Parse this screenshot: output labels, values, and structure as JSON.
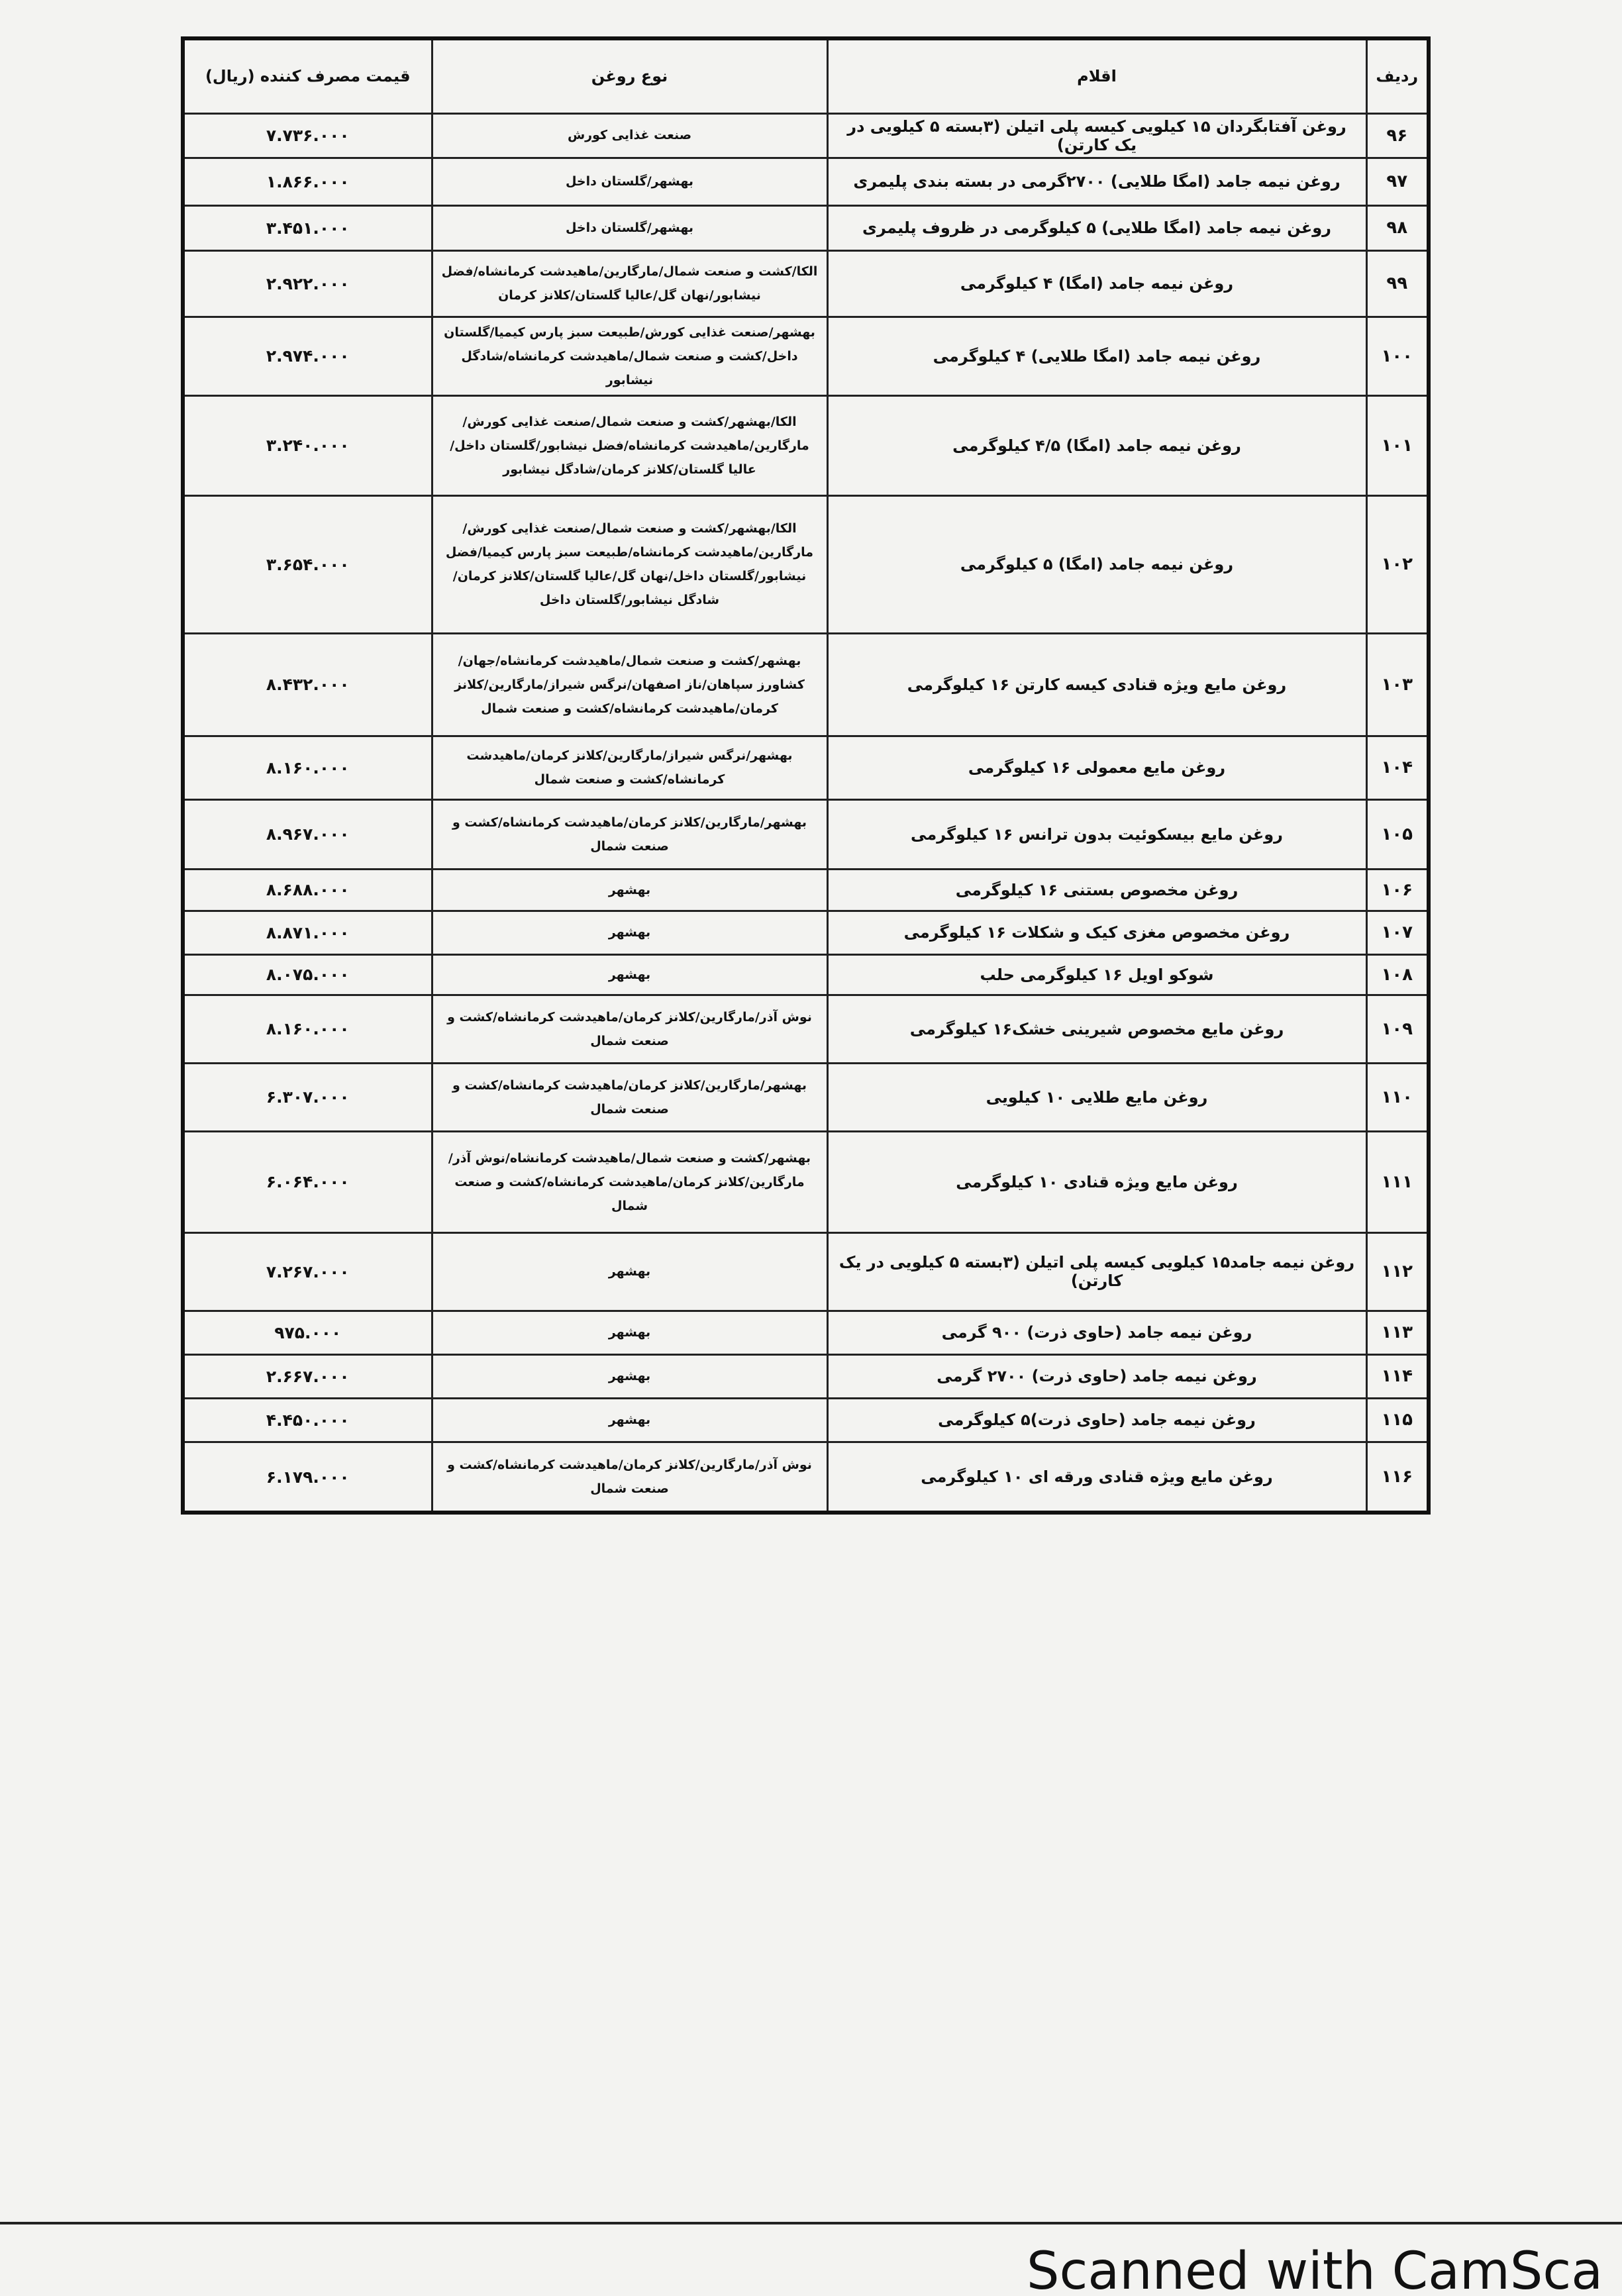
{
  "table": {
    "header": [
      "ردیف",
      "اقلام",
      "نوع روغن",
      "قیمت مصرف کننده (ریال)"
    ],
    "rows": [
      [
        "۹۶",
        "روغن آفتابگردان ۱۵ کیلویی کیسه پلی اتیلن (۳بسته ۵ کیلویی در یک کارتن)",
        "صنعت غذایی کورش",
        "۷.۷۳۶.۰۰۰"
      ],
      [
        "۹۷",
        "روغن نیمه جامد (امگا طلایی) ۲۷۰۰گرمی در بسته بندی پلیمری",
        "بهشهر/گلستان داخل",
        "۱.۸۶۶.۰۰۰"
      ],
      [
        "۹۸",
        "روغن نیمه جامد (امگا طلایی) ۵ کیلوگرمی در ظروف پلیمری",
        "بهشهر/گلستان داخل",
        "۳.۴۵۱.۰۰۰"
      ],
      [
        "۹۹",
        "روغن نیمه جامد (امگا) ۴ کیلوگرمی",
        "الکا/کشت و صنعت شمال/مارگارین/ماهیدشت کرمانشاه/فضل نیشابور/نهان گل/عالیا گلستان/کلانز کرمان",
        "۲.۹۲۲.۰۰۰"
      ],
      [
        "۱۰۰",
        "روغن نیمه جامد (امگا طلایی) ۴ کیلوگرمی",
        "بهشهر/صنعت غذایی کورش/طبیعت سبز پارس کیمیا/گلستان داخل/کشت و صنعت شمال/ماهیدشت کرمانشاه/شادگل نیشابور",
        "۲.۹۷۴.۰۰۰"
      ],
      [
        "۱۰۱",
        "روغن نیمه جامد (امگا) ۴/۵ کیلوگرمی",
        "الکا/بهشهر/کشت و صنعت شمال/صنعت غذایی کورش/مارگارین/ماهیدشت کرمانشاه/فضل نیشابور/گلستان داخل/عالیا گلستان/کلانز کرمان/شادگل نیشابور",
        "۳.۲۴۰.۰۰۰"
      ],
      [
        "۱۰۲",
        "روغن نیمه جامد (امگا) ۵ کیلوگرمی",
        "الکا/بهشهر/کشت و صنعت شمال/صنعت غذایی کورش/مارگارین/ماهیدشت کرمانشاه/طبیعت سبز پارس کیمیا/فضل نیشابور/گلستان داخل/نهان گل/عالیا گلستان/کلانز کرمان/شادگل نیشابور/گلستان داخل",
        "۳.۶۵۴.۰۰۰"
      ],
      [
        "۱۰۳",
        "روغن مایع ویژه قنادی کیسه کارتن ۱۶ کیلوگرمی",
        "بهشهر/کشت و صنعت شمال/ماهیدشت کرمانشاه/جهان/کشاورز سپاهان/ناز اصفهان/نرگس شیراز/مارگارین/کلانز کرمان/ماهیدشت کرمانشاه/کشت و صنعت شمال",
        "۸.۴۳۲.۰۰۰"
      ],
      [
        "۱۰۴",
        "روغن مایع معمولی ۱۶ کیلوگرمی",
        "بهشهر/نرگس شیراز/مارگارین/کلانز کرمان/ماهیدشت کرمانشاه/کشت و صنعت شمال",
        "۸.۱۶۰.۰۰۰"
      ],
      [
        "۱۰۵",
        "روغن مایع بیسکوئیت بدون ترانس ۱۶ کیلوگرمی",
        "بهشهر/مارگارین/کلانز کرمان/ماهیدشت کرمانشاه/کشت و صنعت شمال",
        "۸.۹۶۷.۰۰۰"
      ],
      [
        "۱۰۶",
        "روغن مخصوص بستنی ۱۶ کیلوگرمی",
        "بهشهر",
        "۸.۶۸۸.۰۰۰"
      ],
      [
        "۱۰۷",
        "روغن مخصوص مغزی کیک و شکلات ۱۶ کیلوگرمی",
        "بهشهر",
        "۸.۸۷۱.۰۰۰"
      ],
      [
        "۱۰۸",
        "شوکو اویل ۱۶ کیلوگرمی حلب",
        "بهشهر",
        "۸.۰۷۵.۰۰۰"
      ],
      [
        "۱۰۹",
        "روغن مایع مخصوص شیرینی خشک۱۶ کیلوگرمی",
        "نوش آذر/مارگارین/کلانز کرمان/ماهیدشت کرمانشاه/کشت و صنعت شمال",
        "۸.۱۶۰.۰۰۰"
      ],
      [
        "۱۱۰",
        "روغن مایع طلایی ۱۰ کیلویی",
        "بهشهر/مارگارین/کلانز کرمان/ماهیدشت کرمانشاه/کشت و صنعت شمال",
        "۶.۳۰۷.۰۰۰"
      ],
      [
        "۱۱۱",
        "روغن مایع ویژه قنادی ۱۰ کیلوگرمی",
        "بهشهر/کشت و صنعت شمال/ماهیدشت کرمانشاه/نوش آذر/مارگارین/کلانز کرمان/ماهیدشت کرمانشاه/کشت و صنعت شمال",
        "۶.۰۶۴.۰۰۰"
      ],
      [
        "۱۱۲",
        "روغن نیمه جامد۱۵ کیلویی کیسه پلی اتیلن (۳بسته ۵ کیلویی در یک کارتن)",
        "بهشهر",
        "۷.۲۶۷.۰۰۰"
      ],
      [
        "۱۱۳",
        "روغن نیمه جامد (حاوی ذرت) ۹۰۰ گرمی",
        "بهشهر",
        "۹۷۵.۰۰۰"
      ],
      [
        "۱۱۴",
        "روغن نیمه جامد (حاوی ذرت) ۲۷۰۰ گرمی",
        "بهشهر",
        "۲.۶۶۷.۰۰۰"
      ],
      [
        "۱۱۵",
        "روغن نیمه جامد (حاوی ذرت)۵ کیلوگرمی",
        "بهشهر",
        "۴.۴۵۰.۰۰۰"
      ],
      [
        "۱۱۶",
        "روغن مایع ویژه قنادی ورقه ای ۱۰ کیلوگرمی",
        "نوش آذر/مارگارین/کلانز کرمان/ماهیدشت کرمانشاه/کشت و صنعت شمال",
        "۶.۱۷۹.۰۰۰"
      ]
    ]
  },
  "footer": "Scanned with CamSca"
}
